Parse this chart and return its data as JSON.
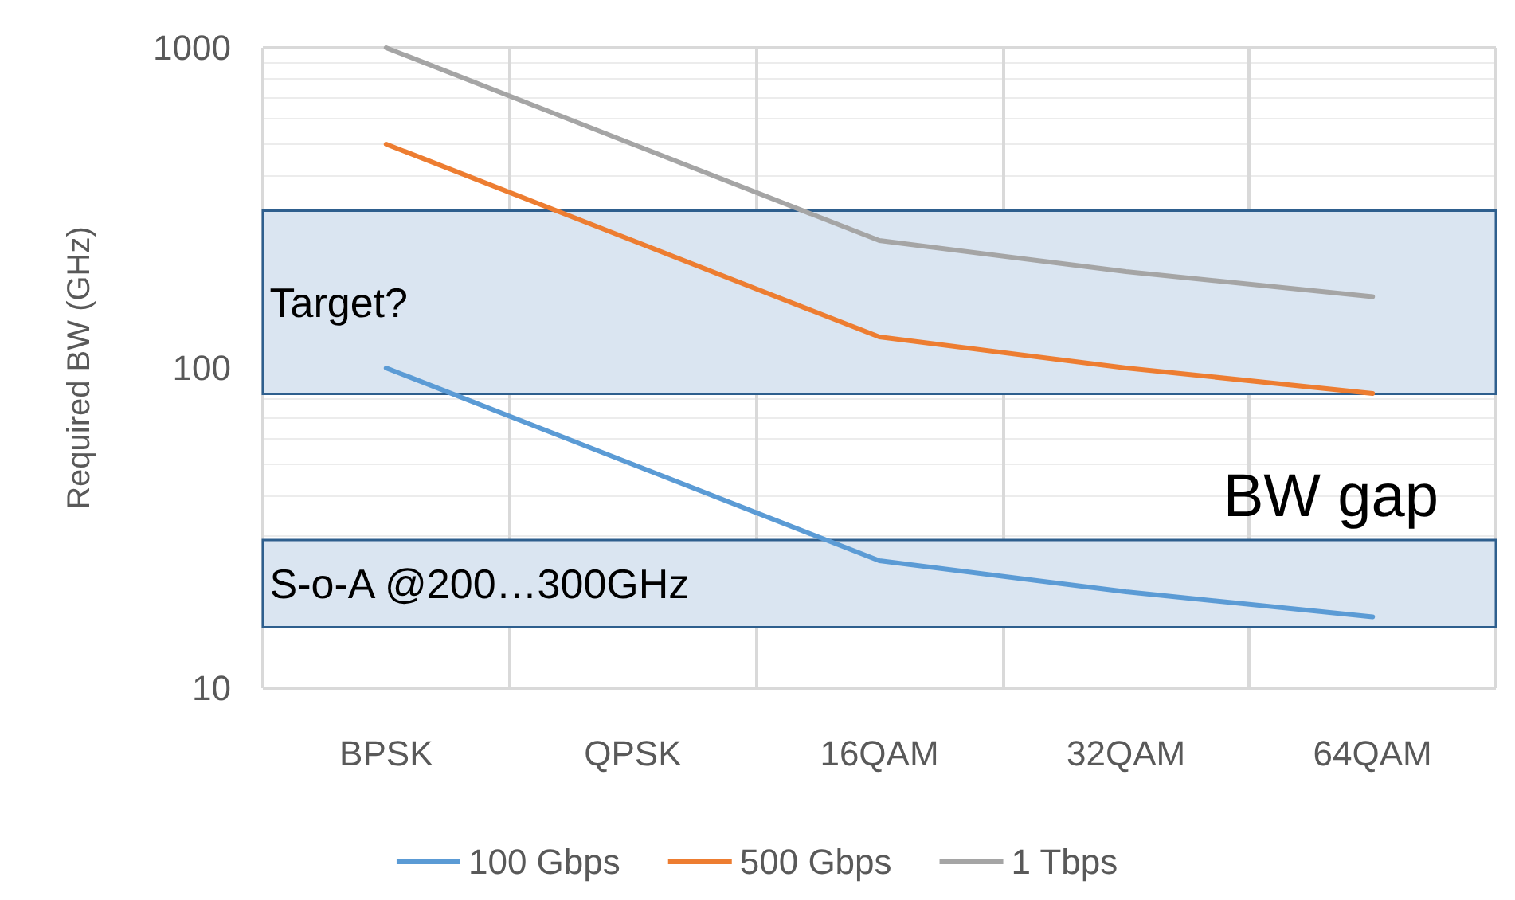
{
  "chart_data": {
    "type": "line",
    "ylabel": "Required BW (GHz)",
    "categories": [
      "BPSK",
      "QPSK",
      "16QAM",
      "32QAM",
      "64QAM"
    ],
    "series": [
      {
        "name": "100 Gbps",
        "color": "#5b9bd5",
        "values": [
          100,
          50,
          25,
          20,
          16.7
        ]
      },
      {
        "name": "500 Gbps",
        "color": "#ed7d31",
        "values": [
          500,
          250,
          125,
          100,
          83.3
        ]
      },
      {
        "name": "1 Tbps",
        "color": "#a5a5a5",
        "values": [
          1000,
          500,
          250,
          200,
          167
        ]
      }
    ],
    "log": "y",
    "ylim": [
      10,
      1000
    ],
    "yticks": [
      10,
      100,
      1000
    ],
    "grid": true,
    "legend": "bottom",
    "marker": "none",
    "line_style": "solid",
    "bands": [
      {
        "axis": "y",
        "from": 83,
        "to": 310,
        "label": "Target?",
        "color": "#dae5f1"
      },
      {
        "axis": "y",
        "from": 15.5,
        "to": 29,
        "label": "S-o-A @200…300GHz",
        "color": "#dae5f1"
      }
    ],
    "annotations": [
      "BW gap"
    ]
  }
}
